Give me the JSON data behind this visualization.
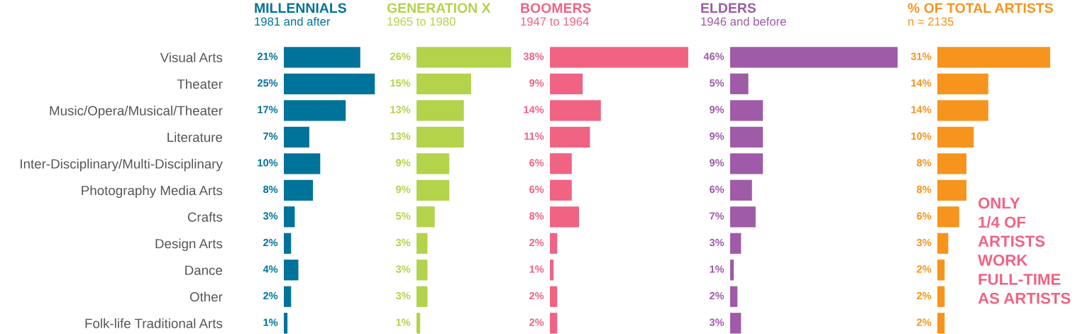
{
  "chart_data": [
    {
      "type": "bar",
      "orientation": "horizontal",
      "title": "MILLENNIALS",
      "subtitle": "1981 and after",
      "tick_labels": "y",
      "categories": [
        "Visual Arts",
        "Theater",
        "Music/Opera/Musical/Theater",
        "Literature",
        "Inter-Disciplinary/Multi-Disciplinary",
        "Photography Media Arts",
        "Crafts",
        "Design Arts",
        "Dance",
        "Other",
        "Folk-life Traditional Arts"
      ],
      "color": "#00739a",
      "values": [
        21,
        25,
        17,
        7,
        10,
        8,
        3,
        2,
        4,
        2,
        1
      ],
      "value_labels": [
        "21%",
        "25%",
        "17%",
        "7%",
        "10%",
        "8%",
        "3%",
        "2%",
        "4%",
        "2%",
        "1%"
      ]
    },
    {
      "type": "bar",
      "orientation": "horizontal",
      "title": "GENERATION X",
      "subtitle": "1965 to 1980",
      "tick_labels": false,
      "color": "#b2d34a",
      "values": [
        26,
        15,
        13,
        13,
        9,
        9,
        5,
        3,
        3,
        3,
        1
      ],
      "value_labels": [
        "26%",
        "15%",
        "13%",
        "13%",
        "9%",
        "9%",
        "5%",
        "3%",
        "3%",
        "3%",
        "1%"
      ]
    },
    {
      "type": "bar",
      "orientation": "horizontal",
      "title": "BOOMERS",
      "subtitle": "1947 to 1964",
      "tick_labels": false,
      "color": "#f06383",
      "values": [
        38,
        9,
        14,
        11,
        6,
        6,
        8,
        2,
        1,
        2,
        2
      ],
      "value_labels": [
        "38%",
        "9%",
        "14%",
        "11%",
        "6%",
        "6%",
        "8%",
        "2%",
        "1%",
        "2%",
        "2%"
      ]
    },
    {
      "type": "bar",
      "orientation": "horizontal",
      "title": "ELDERS",
      "subtitle": "1946 and before",
      "tick_labels": false,
      "color": "#9f5ba8",
      "values": [
        46,
        5,
        9,
        9,
        9,
        6,
        7,
        3,
        1,
        2,
        3
      ],
      "value_labels": [
        "46%",
        "5%",
        "9%",
        "9%",
        "9%",
        "6%",
        "7%",
        "3%",
        "1%",
        "2%",
        "3%"
      ]
    },
    {
      "type": "bar",
      "orientation": "horizontal",
      "title": "% OF TOTAL ARTISTS",
      "subtitle": "n = 2135",
      "tick_labels": false,
      "color": "#f7941d",
      "values": [
        31,
        14,
        14,
        10,
        8,
        8,
        6,
        3,
        2,
        2,
        2
      ],
      "value_labels": [
        "31%",
        "14%",
        "14%",
        "10%",
        "8%",
        "8%",
        "6%",
        "3%",
        "2%",
        "2%",
        "2%"
      ],
      "annotations": [
        "ONLY\n1/4 OF\nARTISTS\nWORK\nFULL-TIME\nAS ARTISTS"
      ]
    }
  ]
}
